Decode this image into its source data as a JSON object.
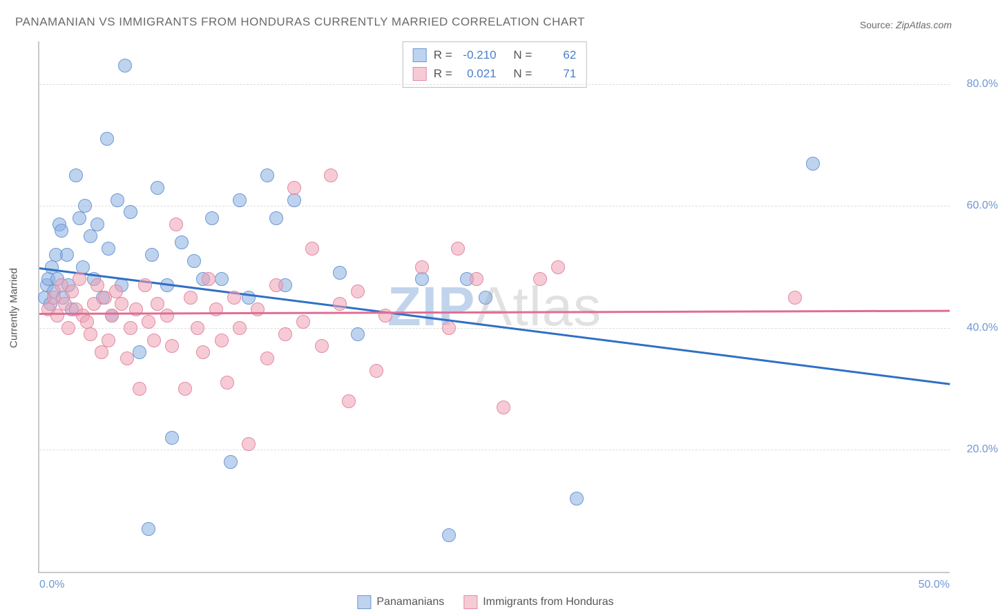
{
  "title": "PANAMANIAN VS IMMIGRANTS FROM HONDURAS CURRENTLY MARRIED CORRELATION CHART",
  "source_label": "Source:",
  "source_value": "ZipAtlas.com",
  "ylabel": "Currently Married",
  "watermark_z": "ZIP",
  "watermark_rest": "Atlas",
  "chart": {
    "type": "scatter",
    "xlim": [
      0,
      50
    ],
    "ylim": [
      0,
      87
    ],
    "xtick_labels": [
      "0.0%",
      "50.0%"
    ],
    "xtick_positions": [
      0,
      50
    ],
    "ytick_labels": [
      "20.0%",
      "40.0%",
      "60.0%",
      "80.0%"
    ],
    "ytick_positions": [
      20,
      40,
      60,
      80
    ],
    "grid_color": "#dcdcdc",
    "axis_color": "#c9c9c9",
    "background_color": "#ffffff",
    "tick_font_color": "#6f97d4",
    "tick_fontsize": 16,
    "title_fontsize": 17,
    "title_color": "#6a6a6a",
    "point_radius": 10,
    "series": [
      {
        "name": "Panamanians",
        "fill": "rgba(137,175,224,0.55)",
        "stroke": "#6f97d4",
        "trend_color": "#2f6fc5",
        "R": "-0.210",
        "N": "62",
        "trend": {
          "x1": 0,
          "y1": 50,
          "x2": 50,
          "y2": 31
        },
        "points": [
          [
            0.3,
            45
          ],
          [
            0.4,
            47
          ],
          [
            0.5,
            48
          ],
          [
            0.6,
            44
          ],
          [
            0.7,
            50
          ],
          [
            0.8,
            46
          ],
          [
            0.9,
            52
          ],
          [
            1.0,
            48
          ],
          [
            1.1,
            57
          ],
          [
            1.2,
            56
          ],
          [
            1.3,
            45
          ],
          [
            1.5,
            52
          ],
          [
            1.6,
            47
          ],
          [
            1.8,
            43
          ],
          [
            2.0,
            65
          ],
          [
            2.2,
            58
          ],
          [
            2.4,
            50
          ],
          [
            2.5,
            60
          ],
          [
            2.8,
            55
          ],
          [
            3.0,
            48
          ],
          [
            3.2,
            57
          ],
          [
            3.5,
            45
          ],
          [
            3.7,
            71
          ],
          [
            3.8,
            53
          ],
          [
            4.0,
            42
          ],
          [
            4.3,
            61
          ],
          [
            4.5,
            47
          ],
          [
            4.7,
            83
          ],
          [
            5.0,
            59
          ],
          [
            5.5,
            36
          ],
          [
            6.0,
            7
          ],
          [
            6.2,
            52
          ],
          [
            6.5,
            63
          ],
          [
            7.0,
            47
          ],
          [
            7.3,
            22
          ],
          [
            7.8,
            54
          ],
          [
            8.5,
            51
          ],
          [
            9.0,
            48
          ],
          [
            9.5,
            58
          ],
          [
            10.0,
            48
          ],
          [
            10.5,
            18
          ],
          [
            11.0,
            61
          ],
          [
            11.5,
            45
          ],
          [
            12.5,
            65
          ],
          [
            13.0,
            58
          ],
          [
            13.5,
            47
          ],
          [
            14.0,
            61
          ],
          [
            16.5,
            49
          ],
          [
            17.5,
            39
          ],
          [
            21.0,
            48
          ],
          [
            22.5,
            6
          ],
          [
            23.5,
            48
          ],
          [
            24.5,
            45
          ],
          [
            29.5,
            12
          ],
          [
            42.5,
            67
          ]
        ]
      },
      {
        "name": "Immigrants from Honduras",
        "fill": "rgba(238,160,180,0.55)",
        "stroke": "#e28aa3",
        "trend_color": "#de6e93",
        "R": "0.021",
        "N": "71",
        "trend": {
          "x1": 0,
          "y1": 42.5,
          "x2": 50,
          "y2": 43
        },
        "points": [
          [
            0.5,
            43
          ],
          [
            0.8,
            45
          ],
          [
            1.0,
            42
          ],
          [
            1.2,
            47
          ],
          [
            1.4,
            44
          ],
          [
            1.6,
            40
          ],
          [
            1.8,
            46
          ],
          [
            2.0,
            43
          ],
          [
            2.2,
            48
          ],
          [
            2.4,
            42
          ],
          [
            2.6,
            41
          ],
          [
            2.8,
            39
          ],
          [
            3.0,
            44
          ],
          [
            3.2,
            47
          ],
          [
            3.4,
            36
          ],
          [
            3.6,
            45
          ],
          [
            3.8,
            38
          ],
          [
            4.0,
            42
          ],
          [
            4.2,
            46
          ],
          [
            4.5,
            44
          ],
          [
            4.8,
            35
          ],
          [
            5.0,
            40
          ],
          [
            5.3,
            43
          ],
          [
            5.5,
            30
          ],
          [
            5.8,
            47
          ],
          [
            6.0,
            41
          ],
          [
            6.3,
            38
          ],
          [
            6.5,
            44
          ],
          [
            7.0,
            42
          ],
          [
            7.3,
            37
          ],
          [
            7.5,
            57
          ],
          [
            8.0,
            30
          ],
          [
            8.3,
            45
          ],
          [
            8.7,
            40
          ],
          [
            9.0,
            36
          ],
          [
            9.3,
            48
          ],
          [
            9.7,
            43
          ],
          [
            10.0,
            38
          ],
          [
            10.3,
            31
          ],
          [
            10.7,
            45
          ],
          [
            11.0,
            40
          ],
          [
            11.5,
            21
          ],
          [
            12.0,
            43
          ],
          [
            12.5,
            35
          ],
          [
            13.0,
            47
          ],
          [
            13.5,
            39
          ],
          [
            14.0,
            63
          ],
          [
            14.5,
            41
          ],
          [
            15.0,
            53
          ],
          [
            15.5,
            37
          ],
          [
            16.0,
            65
          ],
          [
            16.5,
            44
          ],
          [
            17.0,
            28
          ],
          [
            17.5,
            46
          ],
          [
            18.5,
            33
          ],
          [
            19.0,
            42
          ],
          [
            21.0,
            50
          ],
          [
            22.5,
            40
          ],
          [
            23.0,
            53
          ],
          [
            24.0,
            48
          ],
          [
            25.5,
            27
          ],
          [
            27.5,
            48
          ],
          [
            28.5,
            50
          ],
          [
            41.5,
            45
          ]
        ]
      }
    ],
    "stat_legend_labels": {
      "R": "R =",
      "N": "N ="
    },
    "bottom_legend": true
  }
}
